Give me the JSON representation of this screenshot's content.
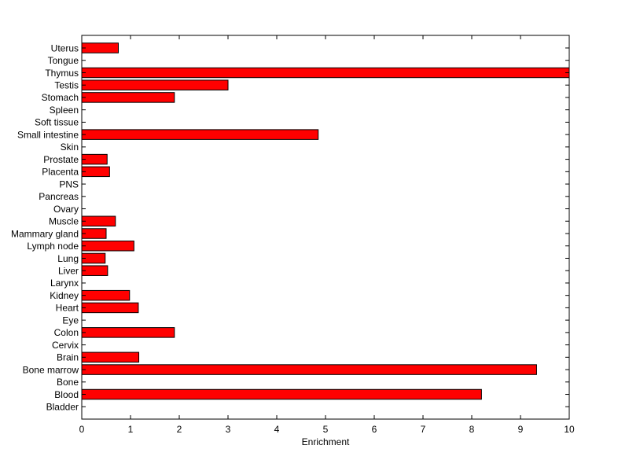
{
  "chart_data": {
    "type": "bar",
    "orientation": "horizontal",
    "title": "",
    "xlabel": "Enrichment",
    "ylabel": "",
    "xlim": [
      0,
      10
    ],
    "xticks": [
      "0",
      "1",
      "2",
      "3",
      "4",
      "5",
      "6",
      "7",
      "8",
      "9",
      "10"
    ],
    "grid": false,
    "bar_color": "#ff0000",
    "categories": [
      "Uterus",
      "Tongue",
      "Thymus",
      "Testis",
      "Stomach",
      "Spleen",
      "Soft tissue",
      "Small intestine",
      "Skin",
      "Prostate",
      "Placenta",
      "PNS",
      "Pancreas",
      "Ovary",
      "Muscle",
      "Mammary gland",
      "Lymph node",
      "Lung",
      "Liver",
      "Larynx",
      "Kidney",
      "Heart",
      "Eye",
      "Colon",
      "Cervix",
      "Brain",
      "Bone marrow",
      "Bone",
      "Blood",
      "Bladder"
    ],
    "values": [
      0.75,
      0,
      10.0,
      3.0,
      1.9,
      0,
      0,
      4.85,
      0,
      0.52,
      0.57,
      0,
      0,
      0,
      0.69,
      0.5,
      1.07,
      0.48,
      0.53,
      0,
      0.98,
      1.16,
      0,
      1.9,
      0,
      1.17,
      9.33,
      0,
      8.2,
      0
    ]
  }
}
